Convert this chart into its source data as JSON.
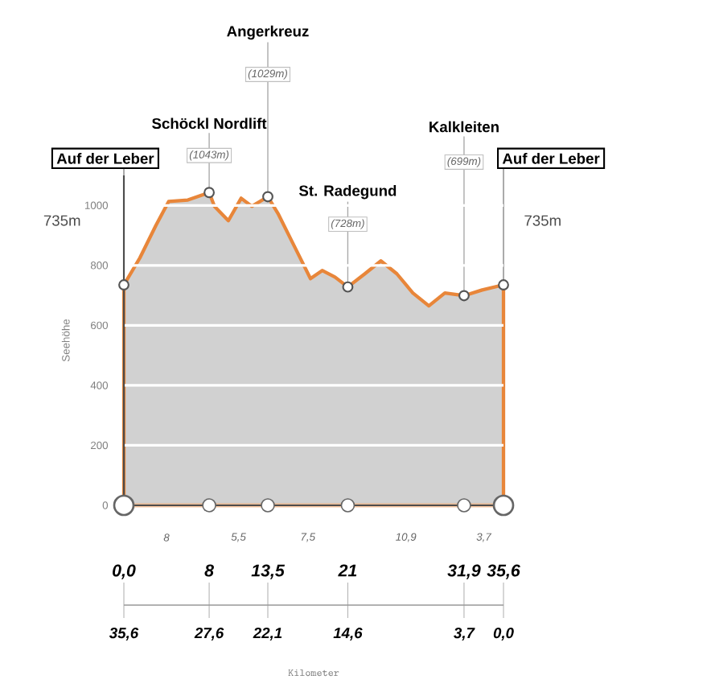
{
  "chart_data": {
    "type": "area",
    "xlim": [
      0,
      35.6
    ],
    "ylim": [
      0,
      1100
    ],
    "ylabel": "Seehöhe",
    "xticks": [
      {
        "value": 0,
        "label": "0,0"
      },
      {
        "value": 8,
        "label": "8"
      },
      {
        "value": 13.5,
        "label": "13,5"
      },
      {
        "value": 21,
        "label": "21"
      },
      {
        "value": 31.9,
        "label": "31,9"
      },
      {
        "value": 35.6,
        "label": "35,6"
      }
    ],
    "yticks": [
      0,
      200,
      400,
      600,
      800,
      1000
    ],
    "grid": "y",
    "series": [
      {
        "color": "#e8863a",
        "x": [
          0,
          1.5,
          3,
          4.2,
          6,
          8,
          8.5,
          9.8,
          11,
          12,
          13.5,
          14.5,
          16,
          17.5,
          18.6,
          19.8,
          21,
          22.6,
          24.1,
          25.6,
          27.1,
          28.6,
          30.1,
          31.9,
          33.6,
          35.6
        ],
        "values": [
          735,
          825,
          933,
          1013,
          1018,
          1043,
          997,
          949,
          1024,
          997,
          1029,
          970,
          863,
          756,
          783,
          761,
          728,
          772,
          815,
          772,
          708,
          665,
          708,
          699,
          718,
          735
        ]
      },
      {
        "type": "scatter",
        "marker": "circle",
        "color": "#555555",
        "x": [
          0,
          8,
          13.5,
          21,
          31.9,
          35.6
        ],
        "values": [
          735,
          1043,
          1029,
          728,
          699,
          735
        ]
      }
    ],
    "annotations": [
      {
        "text": "Auf der Leber",
        "x": 0,
        "y": 735
      },
      "735m",
      {
        "text": "Schöckl Nordlift",
        "x": 8,
        "y": 1043
      },
      "(1043m)",
      {
        "text": "Angerkreuz",
        "x": 13.5,
        "y": 1029
      },
      "(1029m)",
      {
        "text": "St. Radegund",
        "x": 21,
        "y": 728
      },
      "(728m)",
      {
        "text": "Kalkleiten",
        "x": 31.9,
        "y": 699
      },
      "(699m)",
      {
        "text": "Auf der Leber",
        "x": 35.6,
        "y": 735
      },
      "735m",
      "8",
      "5,5",
      "7,5",
      "10,9",
      "3,7",
      {
        "text": "35,6",
        "x": 0
      },
      {
        "text": "27,6",
        "x": 8
      },
      {
        "text": "22,1",
        "x": 13.5
      },
      {
        "text": "14,6",
        "x": 21
      },
      {
        "text": "3,7",
        "x": 31.9
      },
      {
        "text": "0,0",
        "x": 35.6
      },
      "Kilometer"
    ]
  }
}
